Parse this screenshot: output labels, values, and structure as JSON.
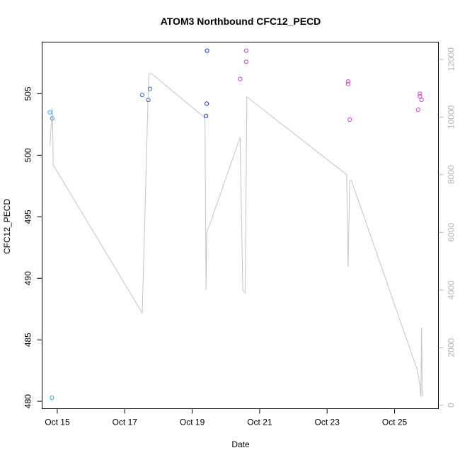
{
  "chart_data": {
    "type": "scatter",
    "title": "ATOM3 Northbound CFC12_PECD",
    "xlabel": "Date",
    "ylabel": "CFC12_PECD",
    "x_ticks": [
      "Oct 15",
      "Oct 17",
      "Oct 19",
      "Oct 21",
      "Oct 23",
      "Oct 25"
    ],
    "x_tick_days": [
      15,
      17,
      19,
      21,
      23,
      25
    ],
    "xlim": [
      14.55,
      26.3
    ],
    "ylim": [
      479.4,
      509.2
    ],
    "y_ticks": [
      480,
      485,
      490,
      495,
      500,
      505
    ],
    "y2lim": [
      -120,
      12600
    ],
    "y2_ticks": [
      0,
      2000,
      4000,
      6000,
      8000,
      10000,
      12000
    ],
    "grid": false,
    "points": [
      {
        "x": 14.78,
        "y": 503.5,
        "color": "#29a8e0"
      },
      {
        "x": 14.85,
        "y": 503.0,
        "color": "#29a8e0"
      },
      {
        "x": 14.84,
        "y": 480.3,
        "color": "#29a8e0"
      },
      {
        "x": 17.52,
        "y": 504.9,
        "color": "#2a6cd8"
      },
      {
        "x": 17.7,
        "y": 504.5,
        "color": "#2a6cd8"
      },
      {
        "x": 17.75,
        "y": 505.4,
        "color": "#2a6cd8"
      },
      {
        "x": 19.44,
        "y": 508.5,
        "color": "#1d33d8"
      },
      {
        "x": 19.43,
        "y": 504.2,
        "color": "#1d33d8"
      },
      {
        "x": 19.41,
        "y": 503.2,
        "color": "#1d33d8"
      },
      {
        "x": 20.42,
        "y": 506.2,
        "color": "#b43fd8"
      },
      {
        "x": 20.6,
        "y": 508.5,
        "color": "#b43fd8"
      },
      {
        "x": 20.6,
        "y": 507.6,
        "color": "#b43fd8"
      },
      {
        "x": 23.62,
        "y": 506.0,
        "color": "#d23fd2"
      },
      {
        "x": 23.62,
        "y": 505.8,
        "color": "#d23fd2"
      },
      {
        "x": 23.67,
        "y": 502.9,
        "color": "#d23fd2"
      },
      {
        "x": 25.7,
        "y": 503.7,
        "color": "#e43fd2"
      },
      {
        "x": 25.75,
        "y": 505.0,
        "color": "#e43fd2"
      },
      {
        "x": 25.75,
        "y": 504.8,
        "color": "#e43fd2"
      },
      {
        "x": 25.8,
        "y": 504.5,
        "color": "#e43fd2"
      }
    ],
    "altitude_line": {
      "color": "#c4c4c4",
      "x": [
        14.78,
        14.85,
        14.86,
        14.88,
        14.9,
        17.52,
        17.7,
        17.72,
        17.8,
        19.35,
        19.38,
        19.41,
        19.43,
        19.45,
        19.5,
        20.42,
        20.5,
        20.57,
        20.62,
        23.58,
        23.62,
        23.67,
        23.72,
        25.68,
        25.75,
        25.78,
        25.8,
        25.82
      ],
      "y": [
        9000,
        10300,
        10000,
        8300,
        8300,
        3200,
        11000,
        11500,
        11500,
        10000,
        9800,
        4000,
        6000,
        6100,
        6200,
        9300,
        4000,
        3900,
        10700,
        8000,
        4800,
        7800,
        7800,
        1200,
        700,
        300,
        2700,
        300
      ]
    }
  }
}
